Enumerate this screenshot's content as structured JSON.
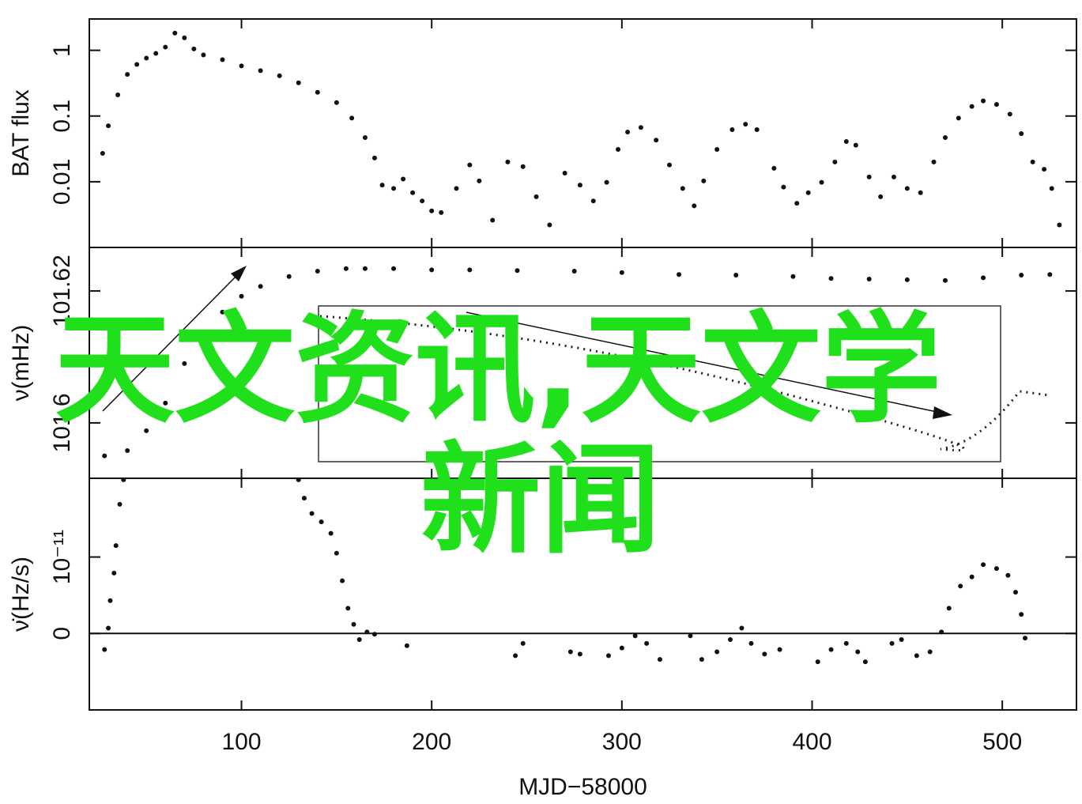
{
  "chart_data": [
    {
      "type": "scatter",
      "ylabel": "BAT flux",
      "log_y": true,
      "color": "#111111",
      "xlim": [
        20,
        539
      ],
      "xticks": [
        100,
        200,
        300,
        400,
        500
      ],
      "ylim": [
        0.001,
        3
      ],
      "yticks": [
        1,
        0.1,
        0.01
      ],
      "x": [
        27,
        30,
        35,
        40,
        45,
        50,
        55,
        60,
        65,
        70,
        75,
        80,
        90,
        100,
        110,
        120,
        130,
        140,
        150,
        158,
        165,
        170,
        174,
        180,
        185,
        190,
        195,
        200,
        205,
        213,
        220,
        225,
        232,
        240,
        248,
        255,
        262,
        270,
        278,
        285,
        292,
        298,
        303,
        310,
        318,
        325,
        332,
        338,
        343,
        350,
        358,
        365,
        371,
        380,
        385,
        392,
        398,
        405,
        412,
        418,
        423,
        430,
        436,
        443,
        450,
        457,
        464,
        470,
        477,
        484,
        490,
        497,
        504,
        510,
        516,
        522,
        526,
        530
      ],
      "values": [
        0.027,
        0.071,
        0.21,
        0.43,
        0.61,
        0.76,
        0.9,
        1.12,
        1.83,
        1.55,
        1.05,
        0.85,
        0.72,
        0.58,
        0.49,
        0.41,
        0.32,
        0.23,
        0.16,
        0.093,
        0.047,
        0.023,
        0.0089,
        0.0079,
        0.011,
        0.0068,
        0.0051,
        0.0036,
        0.0034,
        0.0079,
        0.018,
        0.0103,
        0.0026,
        0.02,
        0.017,
        0.0059,
        0.0022,
        0.0135,
        0.0089,
        0.0051,
        0.0098,
        0.031,
        0.057,
        0.067,
        0.043,
        0.018,
        0.0079,
        0.0043,
        0.0103,
        0.031,
        0.062,
        0.075,
        0.062,
        0.016,
        0.0083,
        0.0047,
        0.0068,
        0.0098,
        0.02,
        0.041,
        0.036,
        0.0118,
        0.0059,
        0.0118,
        0.0079,
        0.0068,
        0.02,
        0.047,
        0.093,
        0.14,
        0.17,
        0.15,
        0.107,
        0.054,
        0.02,
        0.0155,
        0.0079,
        0.0022
      ]
    },
    {
      "type": "scatter",
      "ylabel": "ν(mHz)",
      "color": "#111111",
      "xlim": [
        20,
        539
      ],
      "xticks": [
        100,
        200,
        300,
        400,
        500
      ],
      "ylim": [
        101.5916,
        101.6266
      ],
      "yticks": [
        101.6,
        101.62
      ],
      "x": [
        28,
        40,
        50,
        60,
        70,
        80,
        90,
        100,
        110,
        125,
        140,
        155,
        165,
        180,
        200,
        220,
        245,
        275,
        300,
        330,
        360,
        390,
        410,
        430,
        450,
        470,
        490,
        510,
        525
      ],
      "values": [
        101.595,
        101.5958,
        101.5988,
        101.603,
        101.609,
        101.6132,
        101.6168,
        101.6192,
        101.6207,
        101.6222,
        101.623,
        101.6234,
        101.6234,
        101.6234,
        101.6232,
        101.6232,
        101.6231,
        101.623,
        101.6228,
        101.6225,
        101.6224,
        101.6222,
        101.6219,
        101.6218,
        101.6217,
        101.6216,
        101.622,
        101.6224,
        101.6225
      ]
    },
    {
      "type": "scatter",
      "ylabel": "ν̇(Hz/s)",
      "xlabel": "MJD−58000",
      "zero_line": true,
      "color": "#111111",
      "xlim": [
        20,
        539
      ],
      "xticks": [
        100,
        200,
        300,
        400,
        500
      ],
      "ylim": [
        -1e-11,
        2.03e-11
      ],
      "yticks": [
        0,
        {
          "value": 1e-11,
          "label": "10⁻¹¹"
        }
      ],
      "x": [
        28,
        30,
        31,
        33,
        34,
        36,
        38,
        130,
        133,
        137,
        142,
        147,
        150,
        153,
        156,
        159,
        162,
        166,
        170,
        187,
        244,
        248,
        273,
        278,
        293,
        300,
        307,
        313,
        320,
        336,
        342,
        350,
        357,
        363,
        368,
        375,
        383,
        403,
        410,
        418,
        424,
        428,
        442,
        447,
        455,
        462,
        468,
        472,
        478,
        484,
        490,
        497,
        503,
        507,
        510,
        512
      ],
      "values": [
        -2.1e-12,
        7e-13,
        4.3e-12,
        7.9e-12,
        1.15e-11,
        1.69e-11,
        2.01e-11,
        2.01e-11,
        1.77e-11,
        1.57e-11,
        1.46e-11,
        1.31e-11,
        1.05e-11,
        6.9e-12,
        3.3e-12,
        1.2e-12,
        -8e-13,
        2e-13,
        -1e-13,
        -1.6e-12,
        -2.9e-12,
        -1.3e-12,
        -2.4e-12,
        -2.7e-12,
        -2.9e-12,
        -1.9e-12,
        -3e-13,
        -1.3e-12,
        -3.4e-12,
        -3e-13,
        -3.4e-12,
        -2.4e-12,
        -8e-13,
        7e-13,
        -1.3e-12,
        -2.7e-12,
        -2.1e-12,
        -3.7e-12,
        -2.1e-12,
        -1.3e-12,
        -2.4e-12,
        -3.7e-12,
        -1.3e-12,
        -8e-13,
        -2.9e-12,
        -2.4e-12,
        2e-13,
        3.3e-12,
        6.2e-12,
        7.4e-12,
        9e-12,
        8.5e-12,
        7.6e-12,
        5.4e-12,
        2.5e-12,
        -6e-13
      ]
    }
  ],
  "overlay": {
    "lines": [
      "天文资讯,天文学",
      "新闻"
    ]
  }
}
